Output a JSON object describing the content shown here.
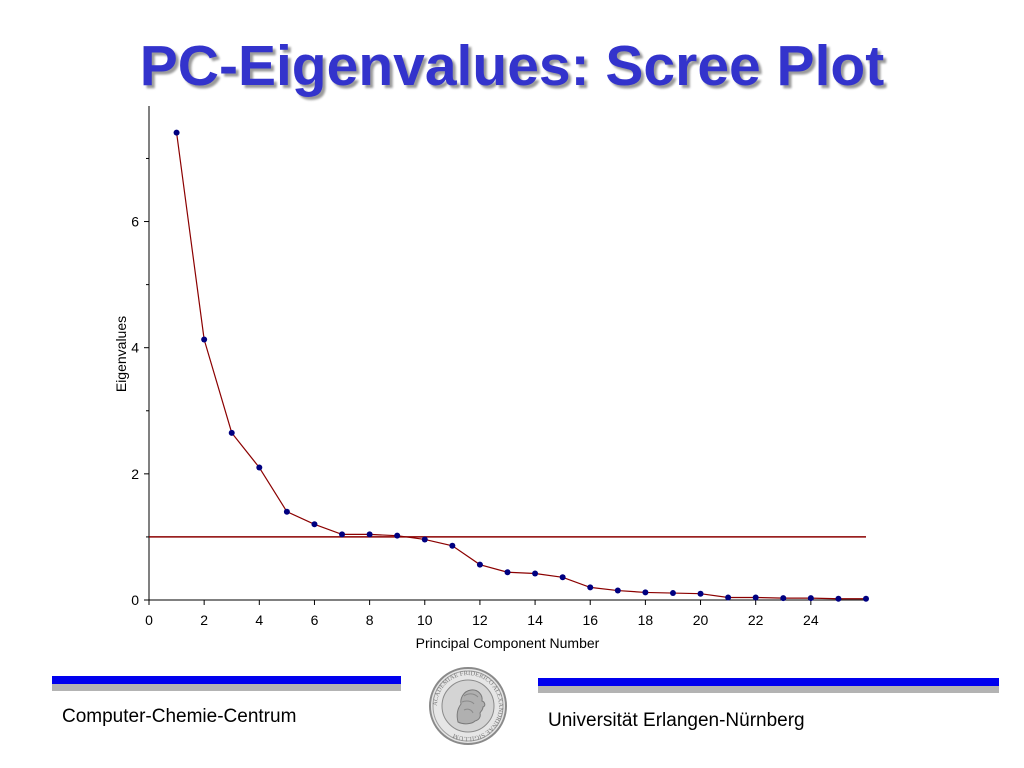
{
  "title": "PC-Eigenvalues: Scree Plot",
  "footer": {
    "left_text": "Computer-Chemie-Centrum",
    "right_text": "Universität Erlangen-Nürnberg",
    "band_colors": {
      "blue": "#0000ee",
      "gray": "#b3b3b3"
    },
    "seal": {
      "icon": "university-seal-icon",
      "lettering": "ACADEMIAE FRIDERICO ALEXANDRINAE SIGILLUM"
    }
  },
  "chart_data": {
    "type": "line",
    "title": "",
    "xlabel": "Principal Component Number",
    "ylabel": "Eigenvalues",
    "xlim": [
      0,
      26
    ],
    "ylim": [
      0,
      7.8
    ],
    "xticks": [
      0,
      2,
      4,
      6,
      8,
      10,
      12,
      14,
      16,
      18,
      20,
      22,
      24
    ],
    "yticks": [
      0,
      2,
      4,
      6
    ],
    "ytick_minor": [
      1,
      3,
      5,
      7
    ],
    "grid": false,
    "series": [
      {
        "x": [
          1,
          2,
          3,
          4,
          5,
          6,
          7,
          8,
          9,
          10,
          11,
          12,
          13,
          14,
          15,
          16,
          17,
          18,
          19,
          20,
          21,
          22,
          23,
          24,
          25,
          26
        ],
        "y": [
          7.41,
          4.13,
          2.65,
          2.1,
          1.4,
          1.2,
          1.04,
          1.04,
          1.02,
          0.96,
          0.86,
          0.56,
          0.44,
          0.42,
          0.36,
          0.2,
          0.15,
          0.12,
          0.11,
          0.1,
          0.04,
          0.04,
          0.03,
          0.03,
          0.02,
          0.02
        ],
        "line_color": "#8b0000",
        "marker_color": "#000080"
      }
    ],
    "reference_line": {
      "y": 1.0,
      "color": "#8b0000"
    }
  }
}
